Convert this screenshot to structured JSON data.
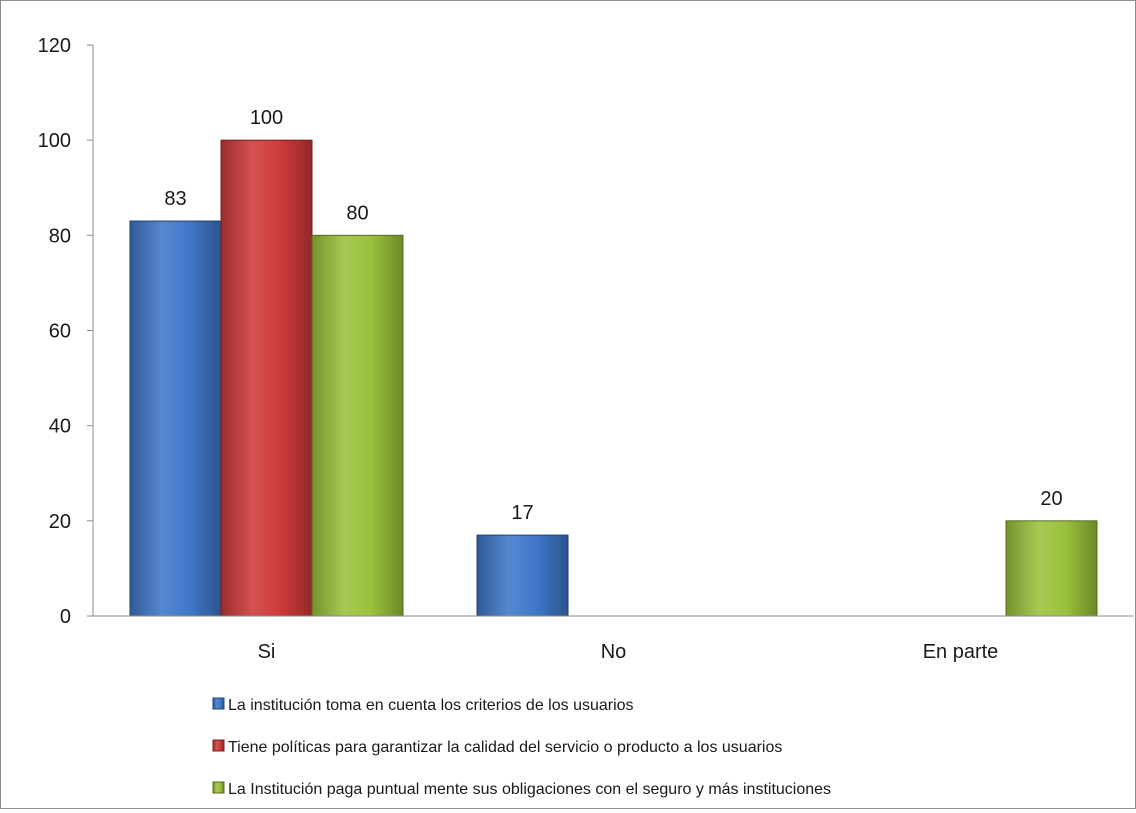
{
  "chart_data": {
    "type": "bar",
    "categories": [
      "Si",
      "No",
      "En parte"
    ],
    "series": [
      {
        "name": "La institución toma en cuenta los criterios de los usuarios",
        "values": [
          83,
          17,
          null
        ],
        "color": "#3f78c9"
      },
      {
        "name": "Tiene políticas para garantizar la calidad del servicio o producto a los usuarios",
        "values": [
          100,
          null,
          null
        ],
        "color": "#cf3a3a"
      },
      {
        "name": "La Institución paga puntual mente sus obligaciones con el seguro y más instituciones",
        "values": [
          80,
          null,
          20
        ],
        "color": "#9ac23c"
      }
    ],
    "ylim": [
      0,
      120
    ],
    "yticks": [
      0,
      20,
      40,
      60,
      80,
      100,
      120
    ],
    "legend_position": "bottom",
    "grid": false
  }
}
